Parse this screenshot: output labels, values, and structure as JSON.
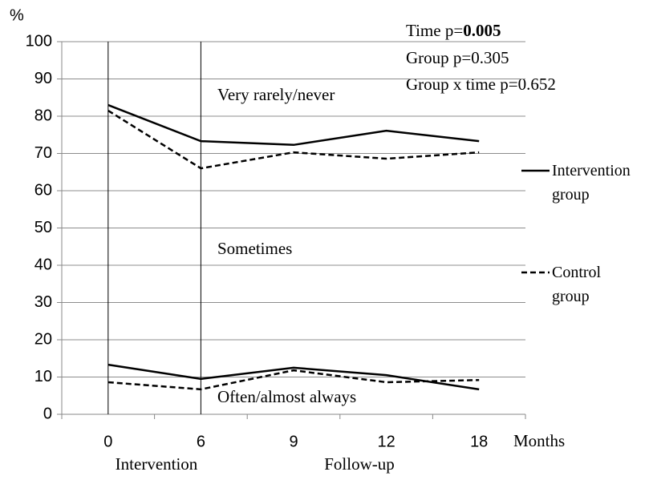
{
  "chart_data": {
    "type": "line",
    "y_label": "%",
    "x_label": "Months",
    "categories": [
      "0",
      "6",
      "9",
      "12",
      "18"
    ],
    "ylim": [
      0,
      100
    ],
    "yticks": [
      0,
      10,
      20,
      30,
      40,
      50,
      60,
      70,
      80,
      90,
      100
    ],
    "grid": true,
    "series": [
      {
        "name": "Intervention group",
        "color": "#000000",
        "dash": "solid",
        "values": [
          83.0,
          73.3,
          72.3,
          76.1,
          73.3
        ],
        "lower_values": [
          13.3,
          9.5,
          12.5,
          10.5,
          6.7
        ]
      },
      {
        "name": "Control group",
        "color": "#000000",
        "dash": "dashed",
        "values": [
          81.5,
          66.0,
          70.3,
          68.6,
          70.3
        ],
        "lower_values": [
          8.6,
          6.7,
          11.8,
          8.6,
          9.2
        ]
      }
    ],
    "annotations": {
      "time": "Time p=",
      "time_p": "0.005",
      "group": "Group p=0.305",
      "interaction": "Group x time p=0.652"
    },
    "region_labels": [
      "Very rarely/never",
      "Sometimes",
      "Often/almost always"
    ],
    "period_labels": [
      "Intervention",
      "Follow-up"
    ]
  }
}
